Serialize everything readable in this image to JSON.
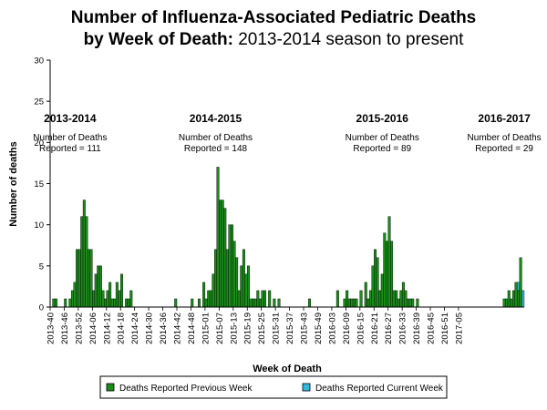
{
  "title_line1": "Number of Influenza-Associated Pediatric Deaths",
  "title_line2_bold": "by Week of Death:",
  "title_line2_rest": "2013-2014 season to present",
  "chart_data": {
    "type": "bar",
    "stacked": true,
    "xlabel": "Week of Death",
    "ylabel": "Number of deaths",
    "ylim": [
      0,
      30
    ],
    "yticks": [
      0,
      5,
      10,
      15,
      20,
      25,
      30
    ],
    "grid": false,
    "legend_position": "bottom",
    "colors": {
      "previous": "#1a8c1a",
      "current": "#33b8e0"
    },
    "x_tick_labels": [
      "2013-40",
      "2013-46",
      "2013-52",
      "2014-06",
      "2014-12",
      "2014-18",
      "2014-24",
      "2014-30",
      "2014-36",
      "2014-42",
      "2014-48",
      "2015-01",
      "2015-07",
      "2015-13",
      "2015-19",
      "2015-25",
      "2015-31",
      "2015-37",
      "2015-43",
      "2015-49",
      "2016-03",
      "2016-09",
      "2016-15",
      "2016-21",
      "2016-27",
      "2016-33",
      "2016-39",
      "2016-45",
      "2016-51",
      "2017-05"
    ],
    "series": [
      {
        "name": "Deaths Reported Previous Week",
        "values": [
          0,
          1,
          1,
          0,
          0,
          0,
          1,
          0,
          1,
          2,
          3,
          7,
          7,
          11,
          13,
          11,
          7,
          7,
          2,
          4,
          5,
          5,
          2,
          1,
          2,
          3,
          1,
          1,
          3,
          2,
          4,
          0,
          1,
          1,
          2,
          0,
          0,
          0,
          0,
          0,
          0,
          0,
          0,
          0,
          0,
          0,
          0,
          0,
          0,
          0,
          0,
          0,
          0,
          1,
          0,
          0,
          0,
          0,
          0,
          0,
          1,
          0,
          0,
          1,
          0,
          3,
          1,
          2,
          2,
          4,
          7,
          17,
          13,
          13,
          12,
          7,
          10,
          10,
          8,
          6,
          2,
          5,
          7,
          4,
          5,
          1,
          1,
          1,
          2,
          1,
          2,
          2,
          0,
          2,
          0,
          1,
          0,
          1,
          0,
          0,
          0,
          0,
          0,
          0,
          0,
          0,
          0,
          0,
          0,
          0,
          1,
          0,
          0,
          0,
          0,
          0,
          0,
          0,
          0,
          0,
          0,
          0,
          2,
          0,
          0,
          1,
          2,
          1,
          1,
          1,
          1,
          0,
          2,
          0,
          3,
          1,
          2,
          5,
          7,
          6,
          2,
          4,
          9,
          8,
          11,
          8,
          2,
          2,
          1,
          2,
          3,
          2,
          1,
          1,
          1,
          0,
          1,
          0,
          0,
          0,
          0,
          0,
          0,
          0,
          0,
          0,
          0,
          0,
          0,
          0,
          0,
          0,
          0,
          0,
          0,
          0,
          0,
          0,
          0,
          0,
          0,
          0,
          0,
          0,
          0,
          0,
          0,
          0,
          0,
          0,
          0,
          0,
          0,
          1,
          1,
          2,
          1,
          2,
          3,
          2,
          6,
          0
        ],
        "color": "#1a8c1a"
      },
      {
        "name": "Deaths Reported Current Week",
        "values": [
          0,
          0,
          0,
          0,
          0,
          0,
          0,
          0,
          0,
          0,
          0,
          0,
          0,
          0,
          0,
          0,
          0,
          0,
          0,
          0,
          0,
          0,
          0,
          0,
          0,
          0,
          0,
          0,
          0,
          0,
          0,
          0,
          0,
          0,
          0,
          0,
          0,
          0,
          0,
          0,
          0,
          0,
          0,
          0,
          0,
          0,
          0,
          0,
          0,
          0,
          0,
          0,
          0,
          0,
          0,
          0,
          0,
          0,
          0,
          0,
          0,
          0,
          0,
          0,
          0,
          0,
          0,
          0,
          0,
          0,
          0,
          0,
          0,
          0,
          0,
          0,
          0,
          0,
          0,
          0,
          0,
          0,
          0,
          0,
          0,
          0,
          0,
          0,
          0,
          0,
          0,
          0,
          0,
          0,
          0,
          0,
          0,
          0,
          0,
          0,
          0,
          0,
          0,
          0,
          0,
          0,
          0,
          0,
          0,
          0,
          0,
          0,
          0,
          0,
          0,
          0,
          0,
          0,
          0,
          0,
          0,
          0,
          0,
          0,
          0,
          0,
          0,
          0,
          0,
          0,
          0,
          0,
          0,
          0,
          0,
          0,
          0,
          0,
          0,
          0,
          0,
          0,
          0,
          0,
          0,
          0,
          0,
          0,
          0,
          0,
          0,
          0,
          0,
          0,
          0,
          0,
          0,
          0,
          0,
          0,
          0,
          0,
          0,
          0,
          0,
          0,
          0,
          0,
          0,
          0,
          0,
          0,
          0,
          0,
          0,
          0,
          0,
          0,
          0,
          0,
          0,
          0,
          0,
          0,
          0,
          0,
          0,
          0,
          0,
          0,
          0,
          0,
          0,
          0,
          0,
          0,
          0,
          0,
          0,
          1,
          0,
          2,
          2,
          1,
          1,
          1
        ],
        "color": "#33b8e0"
      }
    ],
    "annotations": [
      {
        "season": "2013-2014",
        "line1": "Number of Deaths",
        "line2": "Reported = 111",
        "center_week": 8
      },
      {
        "season": "2014-2015",
        "line1": "Number of Deaths",
        "line2": "Reported = 148",
        "center_week": 70
      },
      {
        "season": "2015-2016",
        "line1": "Number of Deaths",
        "line2": "Reported = 89",
        "center_week": 141
      },
      {
        "season": "2016-2017",
        "line1": "Number of Deaths",
        "line2": "Reported = 29",
        "center_week": 193
      }
    ]
  }
}
